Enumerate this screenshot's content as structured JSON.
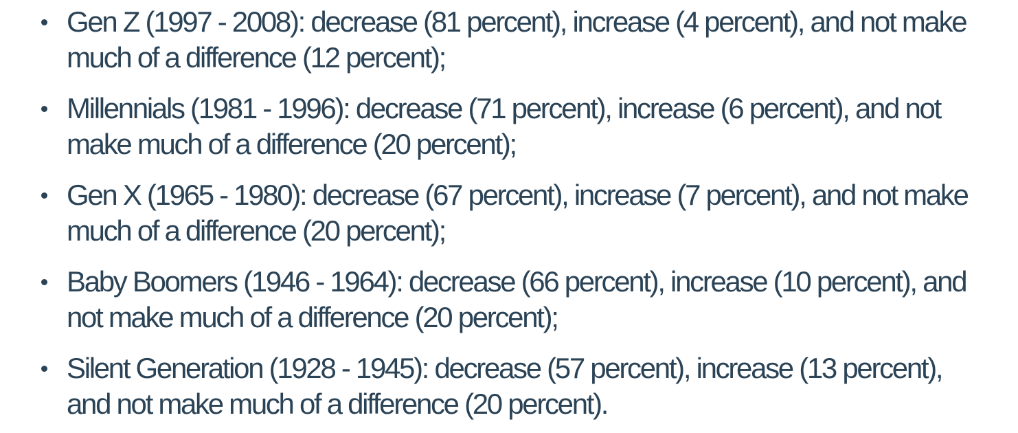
{
  "page": {
    "background_color": "#ffffff",
    "text_color": "#2b4356"
  },
  "list": {
    "items": [
      {
        "generation": "Gen Z",
        "years": "1997 - 2008",
        "decrease_percent": 81,
        "increase_percent": 4,
        "no_difference_percent": 12,
        "lines": [
          "Gen Z (1997 - 2008): decrease (81 percent), increase (4 percent), and not make",
          "much of a difference (12 percent);"
        ]
      },
      {
        "generation": "Millennials",
        "years": "1981 - 1996",
        "decrease_percent": 71,
        "increase_percent": 6,
        "no_difference_percent": 20,
        "lines": [
          "Millennials (1981 - 1996): decrease (71 percent), increase (6 percent), and not",
          "make much of a difference (20 percent);"
        ]
      },
      {
        "generation": "Gen X",
        "years": "1965 - 1980",
        "decrease_percent": 67,
        "increase_percent": 7,
        "no_difference_percent": 20,
        "lines": [
          "Gen X (1965 - 1980): decrease (67 percent), increase (7 percent), and not make",
          "much of a difference (20 percent);"
        ]
      },
      {
        "generation": "Baby Boomers",
        "years": "1946 - 1964",
        "decrease_percent": 66,
        "increase_percent": 10,
        "no_difference_percent": 20,
        "lines": [
          "Baby Boomers (1946 - 1964): decrease (66 percent), increase (10 percent), and",
          "not make much of a difference (20 percent);"
        ]
      },
      {
        "generation": "Silent Generation",
        "years": "1928 - 1945",
        "decrease_percent": 57,
        "increase_percent": 13,
        "no_difference_percent": 20,
        "lines": [
          "Silent Generation (1928 - 1945): decrease (57 percent), increase (13 percent),",
          "and not make much of a difference (20 percent)."
        ]
      }
    ]
  }
}
